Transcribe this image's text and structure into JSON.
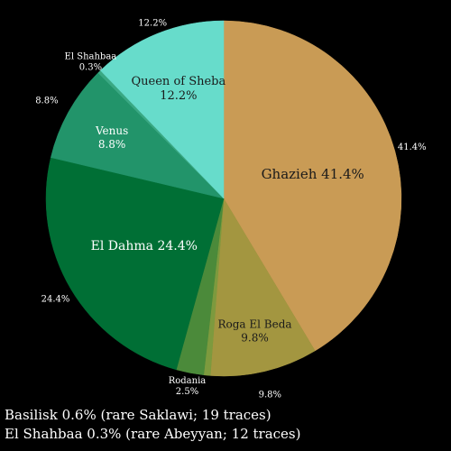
{
  "chart_data": {
    "type": "pie",
    "title": "",
    "slices": [
      {
        "name": "Ghazieh",
        "value": 41.4,
        "label": "41.4%",
        "color": "#c99b55"
      },
      {
        "name": "Roga El Beda",
        "value": 9.8,
        "label": "9.8%",
        "color": "#a39640"
      },
      {
        "name": "Basilisk",
        "value": 0.6,
        "label": "0.6%",
        "color": "#7d9a3e"
      },
      {
        "name": "Rodania",
        "value": 2.5,
        "label": "2.5%",
        "color": "#4b8a3a"
      },
      {
        "name": "El Dahma",
        "value": 24.4,
        "label": "24.4%",
        "color": "#006f35"
      },
      {
        "name": "Venus",
        "value": 8.8,
        "label": "8.8%",
        "color": "#22946a"
      },
      {
        "name": "El Shahbaa",
        "value": 0.3,
        "label": "0.3%",
        "color": "#3aa883"
      },
      {
        "name": "Queen of Sheba",
        "value": 12.2,
        "label": "12.2%",
        "color": "#67dccb"
      }
    ],
    "start_angle_deg": 0,
    "direction": "clockwise",
    "footnotes": [
      "Basilisk 0.6% (rare Saklawi; 19 traces)",
      "El Shahbaa 0.3% (rare Abeyyan; 12 traces)"
    ]
  }
}
